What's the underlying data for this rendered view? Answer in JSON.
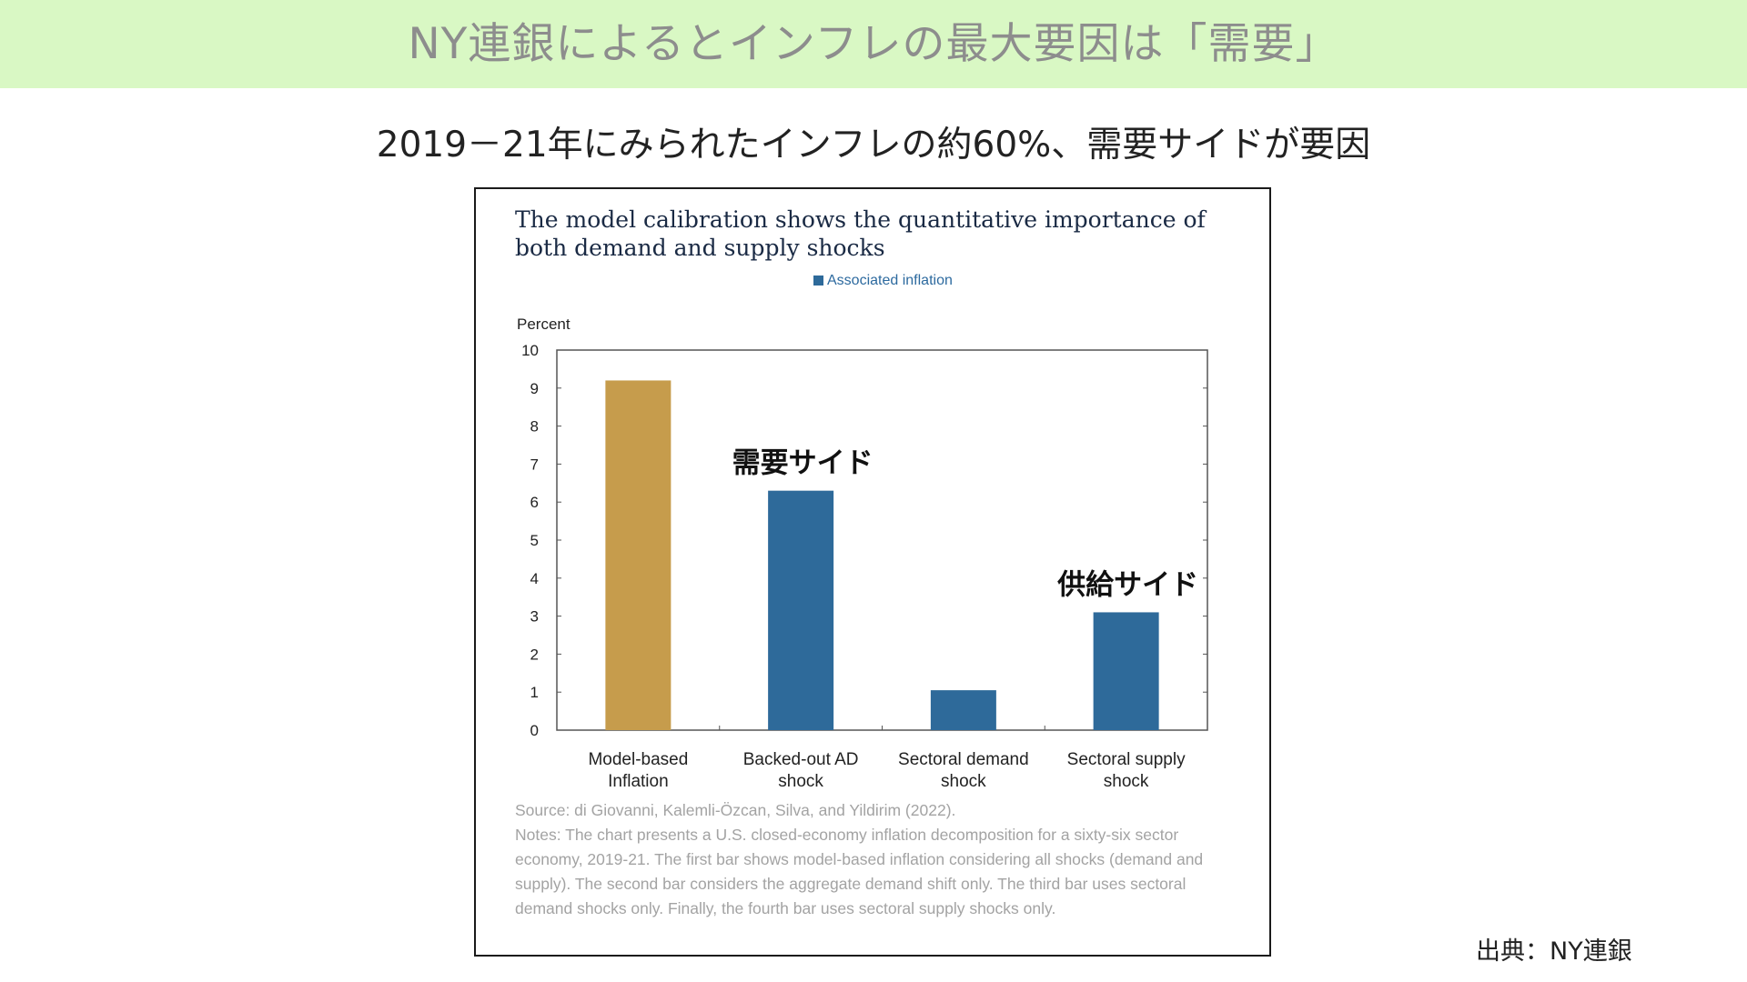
{
  "banner": {
    "title": "NY連銀によるとインフレの最大要因は「需要」"
  },
  "subtitle": "2019－21年にみられたインフレの約60%、需要サイドが要因",
  "chart_data": {
    "type": "bar",
    "title": "The model calibration shows the quantitative importance of both demand and supply shocks",
    "legend": "Associated inflation",
    "ylabel": "Percent",
    "ylim": [
      0,
      10
    ],
    "yticks": [
      "0",
      "1",
      "2",
      "3",
      "4",
      "5",
      "6",
      "7",
      "8",
      "9",
      "10"
    ],
    "categories": [
      [
        "Model-based",
        "Inflation"
      ],
      [
        "Backed-out AD",
        "shock"
      ],
      [
        "Sectoral demand",
        "shock"
      ],
      [
        "Sectoral supply",
        "shock"
      ]
    ],
    "values": [
      9.2,
      6.3,
      1.05,
      3.1
    ],
    "colors": [
      "#c69c4c",
      "#2e6a9a",
      "#2e6a9a",
      "#2e6a9a"
    ],
    "annotations": [
      {
        "text": "需要サイド",
        "category_index": 1
      },
      {
        "text": "供給サイド",
        "category_index": 3
      }
    ],
    "grid": false
  },
  "notes": {
    "source": "Source: di Giovanni, Kalemli-Özcan, Silva, and Yildirim (2022).",
    "text": "Notes: The chart presents a U.S. closed-economy inflation decomposition for a sixty-six sector economy, 2019-21. The first bar shows model-based inflation considering all shocks (demand and supply). The second bar considers the aggregate demand shift only. The third bar uses sectoral demand shocks only. Finally, the fourth bar uses sectoral supply shocks only."
  },
  "credit": "出典：NY連銀"
}
